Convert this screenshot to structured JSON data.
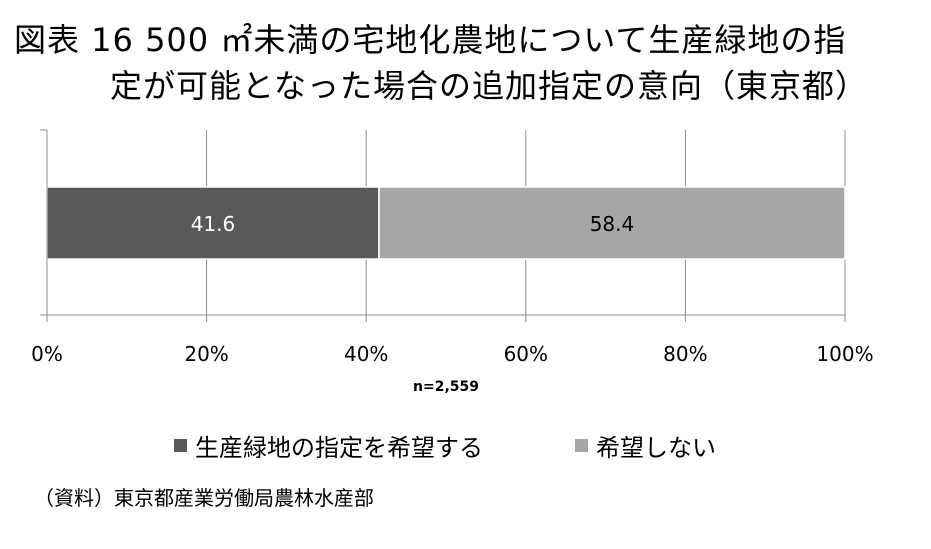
{
  "title": {
    "line1": "図表 16 500 ㎡未満の宅地化農地について生産緑地の指",
    "line2": "定が可能となった場合の追加指定の意向（東京都）"
  },
  "chart_data": {
    "type": "bar",
    "orientation": "horizontal-stacked-100",
    "categories": [
      ""
    ],
    "series": [
      {
        "name": "生産緑地の指定を希望する",
        "values": [
          41.6
        ],
        "color": "#595959",
        "label_color": "#ffffff"
      },
      {
        "name": "希望しない",
        "values": [
          58.4
        ],
        "color": "#a6a6a6",
        "label_color": "#000000"
      }
    ],
    "xlim": [
      0,
      100
    ],
    "x_ticks": [
      "0%",
      "20%",
      "40%",
      "60%",
      "80%",
      "100%"
    ],
    "grid": true,
    "legend_position": "bottom",
    "note": "n=2,559"
  },
  "source": "（資料）東京都産業労働局農林水産部"
}
